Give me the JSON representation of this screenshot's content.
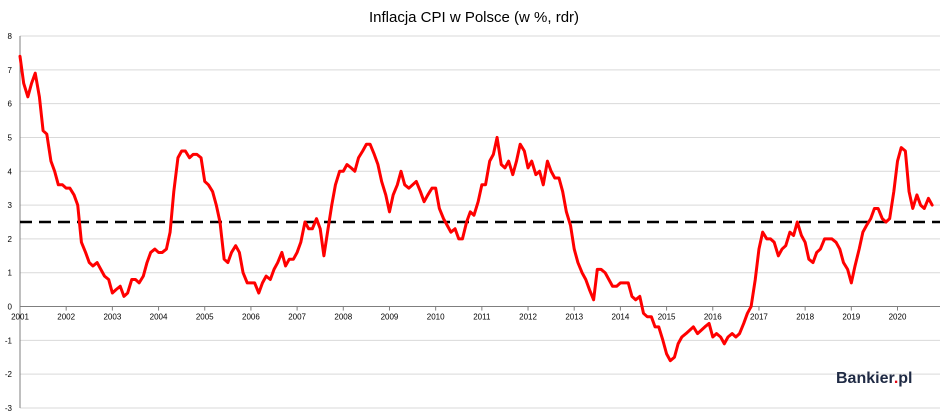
{
  "chart_data": {
    "type": "line",
    "title": "Inflacja CPI w Polsce (w %, rdr)",
    "xlabel": "",
    "ylabel": "",
    "xlim": [
      2001,
      2020.92
    ],
    "ylim": [
      -3,
      8
    ],
    "yticks": [
      "-3",
      "-2",
      "-1",
      "0",
      "1",
      "2",
      "3",
      "4",
      "5",
      "6",
      "7",
      "8"
    ],
    "xticks": [
      "2001",
      "2002",
      "2003",
      "2004",
      "2005",
      "2006",
      "2007",
      "2008",
      "2009",
      "2010",
      "2011",
      "2012",
      "2013",
      "2014",
      "2015",
      "2016",
      "2017",
      "2018",
      "2019",
      "2020"
    ],
    "reference_line": {
      "y": 2.5,
      "color": "#000000",
      "style": "dashed"
    },
    "series": [
      {
        "color": "#ff0000",
        "points": [
          [
            2001.0,
            7.4
          ],
          [
            2001.08,
            6.6
          ],
          [
            2001.17,
            6.2
          ],
          [
            2001.25,
            6.6
          ],
          [
            2001.33,
            6.9
          ],
          [
            2001.42,
            6.2
          ],
          [
            2001.5,
            5.2
          ],
          [
            2001.58,
            5.1
          ],
          [
            2001.67,
            4.3
          ],
          [
            2001.75,
            4.0
          ],
          [
            2001.83,
            3.6
          ],
          [
            2001.92,
            3.6
          ],
          [
            2002.0,
            3.5
          ],
          [
            2002.08,
            3.5
          ],
          [
            2002.17,
            3.3
          ],
          [
            2002.25,
            3.0
          ],
          [
            2002.33,
            1.9
          ],
          [
            2002.42,
            1.6
          ],
          [
            2002.5,
            1.3
          ],
          [
            2002.58,
            1.2
          ],
          [
            2002.67,
            1.3
          ],
          [
            2002.75,
            1.1
          ],
          [
            2002.83,
            0.9
          ],
          [
            2002.92,
            0.8
          ],
          [
            2003.0,
            0.4
          ],
          [
            2003.08,
            0.5
          ],
          [
            2003.17,
            0.6
          ],
          [
            2003.25,
            0.3
          ],
          [
            2003.33,
            0.4
          ],
          [
            2003.42,
            0.8
          ],
          [
            2003.5,
            0.8
          ],
          [
            2003.58,
            0.7
          ],
          [
            2003.67,
            0.9
          ],
          [
            2003.75,
            1.3
          ],
          [
            2003.83,
            1.6
          ],
          [
            2003.92,
            1.7
          ],
          [
            2004.0,
            1.6
          ],
          [
            2004.08,
            1.6
          ],
          [
            2004.17,
            1.7
          ],
          [
            2004.25,
            2.2
          ],
          [
            2004.33,
            3.4
          ],
          [
            2004.42,
            4.4
          ],
          [
            2004.5,
            4.6
          ],
          [
            2004.58,
            4.6
          ],
          [
            2004.67,
            4.4
          ],
          [
            2004.75,
            4.5
          ],
          [
            2004.83,
            4.5
          ],
          [
            2004.92,
            4.4
          ],
          [
            2005.0,
            3.7
          ],
          [
            2005.08,
            3.6
          ],
          [
            2005.17,
            3.4
          ],
          [
            2005.25,
            3.0
          ],
          [
            2005.33,
            2.5
          ],
          [
            2005.42,
            1.4
          ],
          [
            2005.5,
            1.3
          ],
          [
            2005.58,
            1.6
          ],
          [
            2005.67,
            1.8
          ],
          [
            2005.75,
            1.6
          ],
          [
            2005.83,
            1.0
          ],
          [
            2005.92,
            0.7
          ],
          [
            2006.0,
            0.7
          ],
          [
            2006.08,
            0.7
          ],
          [
            2006.17,
            0.4
          ],
          [
            2006.25,
            0.7
          ],
          [
            2006.33,
            0.9
          ],
          [
            2006.42,
            0.8
          ],
          [
            2006.5,
            1.1
          ],
          [
            2006.58,
            1.3
          ],
          [
            2006.67,
            1.6
          ],
          [
            2006.75,
            1.2
          ],
          [
            2006.83,
            1.4
          ],
          [
            2006.92,
            1.4
          ],
          [
            2007.0,
            1.6
          ],
          [
            2007.08,
            1.9
          ],
          [
            2007.17,
            2.5
          ],
          [
            2007.25,
            2.3
          ],
          [
            2007.33,
            2.3
          ],
          [
            2007.42,
            2.6
          ],
          [
            2007.5,
            2.3
          ],
          [
            2007.58,
            1.5
          ],
          [
            2007.67,
            2.3
          ],
          [
            2007.75,
            3.0
          ],
          [
            2007.83,
            3.6
          ],
          [
            2007.92,
            4.0
          ],
          [
            2008.0,
            4.0
          ],
          [
            2008.08,
            4.2
          ],
          [
            2008.17,
            4.1
          ],
          [
            2008.25,
            4.0
          ],
          [
            2008.33,
            4.4
          ],
          [
            2008.42,
            4.6
          ],
          [
            2008.5,
            4.8
          ],
          [
            2008.58,
            4.8
          ],
          [
            2008.67,
            4.5
          ],
          [
            2008.75,
            4.2
          ],
          [
            2008.83,
            3.7
          ],
          [
            2008.92,
            3.3
          ],
          [
            2009.0,
            2.8
          ],
          [
            2009.08,
            3.3
          ],
          [
            2009.17,
            3.6
          ],
          [
            2009.25,
            4.0
          ],
          [
            2009.33,
            3.6
          ],
          [
            2009.42,
            3.5
          ],
          [
            2009.5,
            3.6
          ],
          [
            2009.58,
            3.7
          ],
          [
            2009.67,
            3.4
          ],
          [
            2009.75,
            3.1
          ],
          [
            2009.83,
            3.3
          ],
          [
            2009.92,
            3.5
          ],
          [
            2010.0,
            3.5
          ],
          [
            2010.08,
            2.9
          ],
          [
            2010.17,
            2.6
          ],
          [
            2010.25,
            2.4
          ],
          [
            2010.33,
            2.2
          ],
          [
            2010.42,
            2.3
          ],
          [
            2010.5,
            2.0
          ],
          [
            2010.58,
            2.0
          ],
          [
            2010.67,
            2.5
          ],
          [
            2010.75,
            2.8
          ],
          [
            2010.83,
            2.7
          ],
          [
            2010.92,
            3.1
          ],
          [
            2011.0,
            3.6
          ],
          [
            2011.08,
            3.6
          ],
          [
            2011.17,
            4.3
          ],
          [
            2011.25,
            4.5
          ],
          [
            2011.33,
            5.0
          ],
          [
            2011.42,
            4.2
          ],
          [
            2011.5,
            4.1
          ],
          [
            2011.58,
            4.3
          ],
          [
            2011.67,
            3.9
          ],
          [
            2011.75,
            4.3
          ],
          [
            2011.83,
            4.8
          ],
          [
            2011.92,
            4.6
          ],
          [
            2012.0,
            4.1
          ],
          [
            2012.08,
            4.3
          ],
          [
            2012.17,
            3.9
          ],
          [
            2012.25,
            4.0
          ],
          [
            2012.33,
            3.6
          ],
          [
            2012.42,
            4.3
          ],
          [
            2012.5,
            4.0
          ],
          [
            2012.58,
            3.8
          ],
          [
            2012.67,
            3.8
          ],
          [
            2012.75,
            3.4
          ],
          [
            2012.83,
            2.8
          ],
          [
            2012.92,
            2.4
          ],
          [
            2013.0,
            1.7
          ],
          [
            2013.08,
            1.3
          ],
          [
            2013.17,
            1.0
          ],
          [
            2013.25,
            0.8
          ],
          [
            2013.33,
            0.5
          ],
          [
            2013.42,
            0.2
          ],
          [
            2013.5,
            1.1
          ],
          [
            2013.58,
            1.1
          ],
          [
            2013.67,
            1.0
          ],
          [
            2013.75,
            0.8
          ],
          [
            2013.83,
            0.6
          ],
          [
            2013.92,
            0.6
          ],
          [
            2014.0,
            0.7
          ],
          [
            2014.08,
            0.7
          ],
          [
            2014.17,
            0.7
          ],
          [
            2014.25,
            0.3
          ],
          [
            2014.33,
            0.2
          ],
          [
            2014.42,
            0.3
          ],
          [
            2014.5,
            -0.2
          ],
          [
            2014.58,
            -0.3
          ],
          [
            2014.67,
            -0.3
          ],
          [
            2014.75,
            -0.6
          ],
          [
            2014.83,
            -0.6
          ],
          [
            2014.92,
            -1.0
          ],
          [
            2015.0,
            -1.4
          ],
          [
            2015.08,
            -1.6
          ],
          [
            2015.17,
            -1.5
          ],
          [
            2015.25,
            -1.1
          ],
          [
            2015.33,
            -0.9
          ],
          [
            2015.42,
            -0.8
          ],
          [
            2015.5,
            -0.7
          ],
          [
            2015.58,
            -0.6
          ],
          [
            2015.67,
            -0.8
          ],
          [
            2015.75,
            -0.7
          ],
          [
            2015.83,
            -0.6
          ],
          [
            2015.92,
            -0.5
          ],
          [
            2016.0,
            -0.9
          ],
          [
            2016.08,
            -0.8
          ],
          [
            2016.17,
            -0.9
          ],
          [
            2016.25,
            -1.1
          ],
          [
            2016.33,
            -0.9
          ],
          [
            2016.42,
            -0.8
          ],
          [
            2016.5,
            -0.9
          ],
          [
            2016.58,
            -0.8
          ],
          [
            2016.67,
            -0.5
          ],
          [
            2016.75,
            -0.2
          ],
          [
            2016.83,
            0.0
          ],
          [
            2016.92,
            0.8
          ],
          [
            2017.0,
            1.7
          ],
          [
            2017.08,
            2.2
          ],
          [
            2017.17,
            2.0
          ],
          [
            2017.25,
            2.0
          ],
          [
            2017.33,
            1.9
          ],
          [
            2017.42,
            1.5
          ],
          [
            2017.5,
            1.7
          ],
          [
            2017.58,
            1.8
          ],
          [
            2017.67,
            2.2
          ],
          [
            2017.75,
            2.1
          ],
          [
            2017.83,
            2.5
          ],
          [
            2017.92,
            2.1
          ],
          [
            2018.0,
            1.9
          ],
          [
            2018.08,
            1.4
          ],
          [
            2018.17,
            1.3
          ],
          [
            2018.25,
            1.6
          ],
          [
            2018.33,
            1.7
          ],
          [
            2018.42,
            2.0
          ],
          [
            2018.5,
            2.0
          ],
          [
            2018.58,
            2.0
          ],
          [
            2018.67,
            1.9
          ],
          [
            2018.75,
            1.7
          ],
          [
            2018.83,
            1.3
          ],
          [
            2018.92,
            1.1
          ],
          [
            2019.0,
            0.7
          ],
          [
            2019.08,
            1.2
          ],
          [
            2019.17,
            1.7
          ],
          [
            2019.25,
            2.2
          ],
          [
            2019.33,
            2.4
          ],
          [
            2019.42,
            2.6
          ],
          [
            2019.5,
            2.9
          ],
          [
            2019.58,
            2.9
          ],
          [
            2019.67,
            2.6
          ],
          [
            2019.75,
            2.5
          ],
          [
            2019.83,
            2.6
          ],
          [
            2019.92,
            3.4
          ],
          [
            2020.0,
            4.3
          ],
          [
            2020.08,
            4.7
          ],
          [
            2020.17,
            4.6
          ],
          [
            2020.25,
            3.4
          ],
          [
            2020.33,
            2.9
          ],
          [
            2020.42,
            3.3
          ],
          [
            2020.5,
            3.0
          ],
          [
            2020.58,
            2.9
          ],
          [
            2020.67,
            3.2
          ],
          [
            2020.75,
            3.0
          ]
        ]
      }
    ]
  },
  "logo": {
    "text_main": "Bankier",
    "text_dot": ".",
    "text_tld": "pl"
  },
  "colors": {
    "line": "#ff0000",
    "reference": "#000000",
    "grid": "#d9d9d9",
    "axis": "#7f7f7f"
  }
}
